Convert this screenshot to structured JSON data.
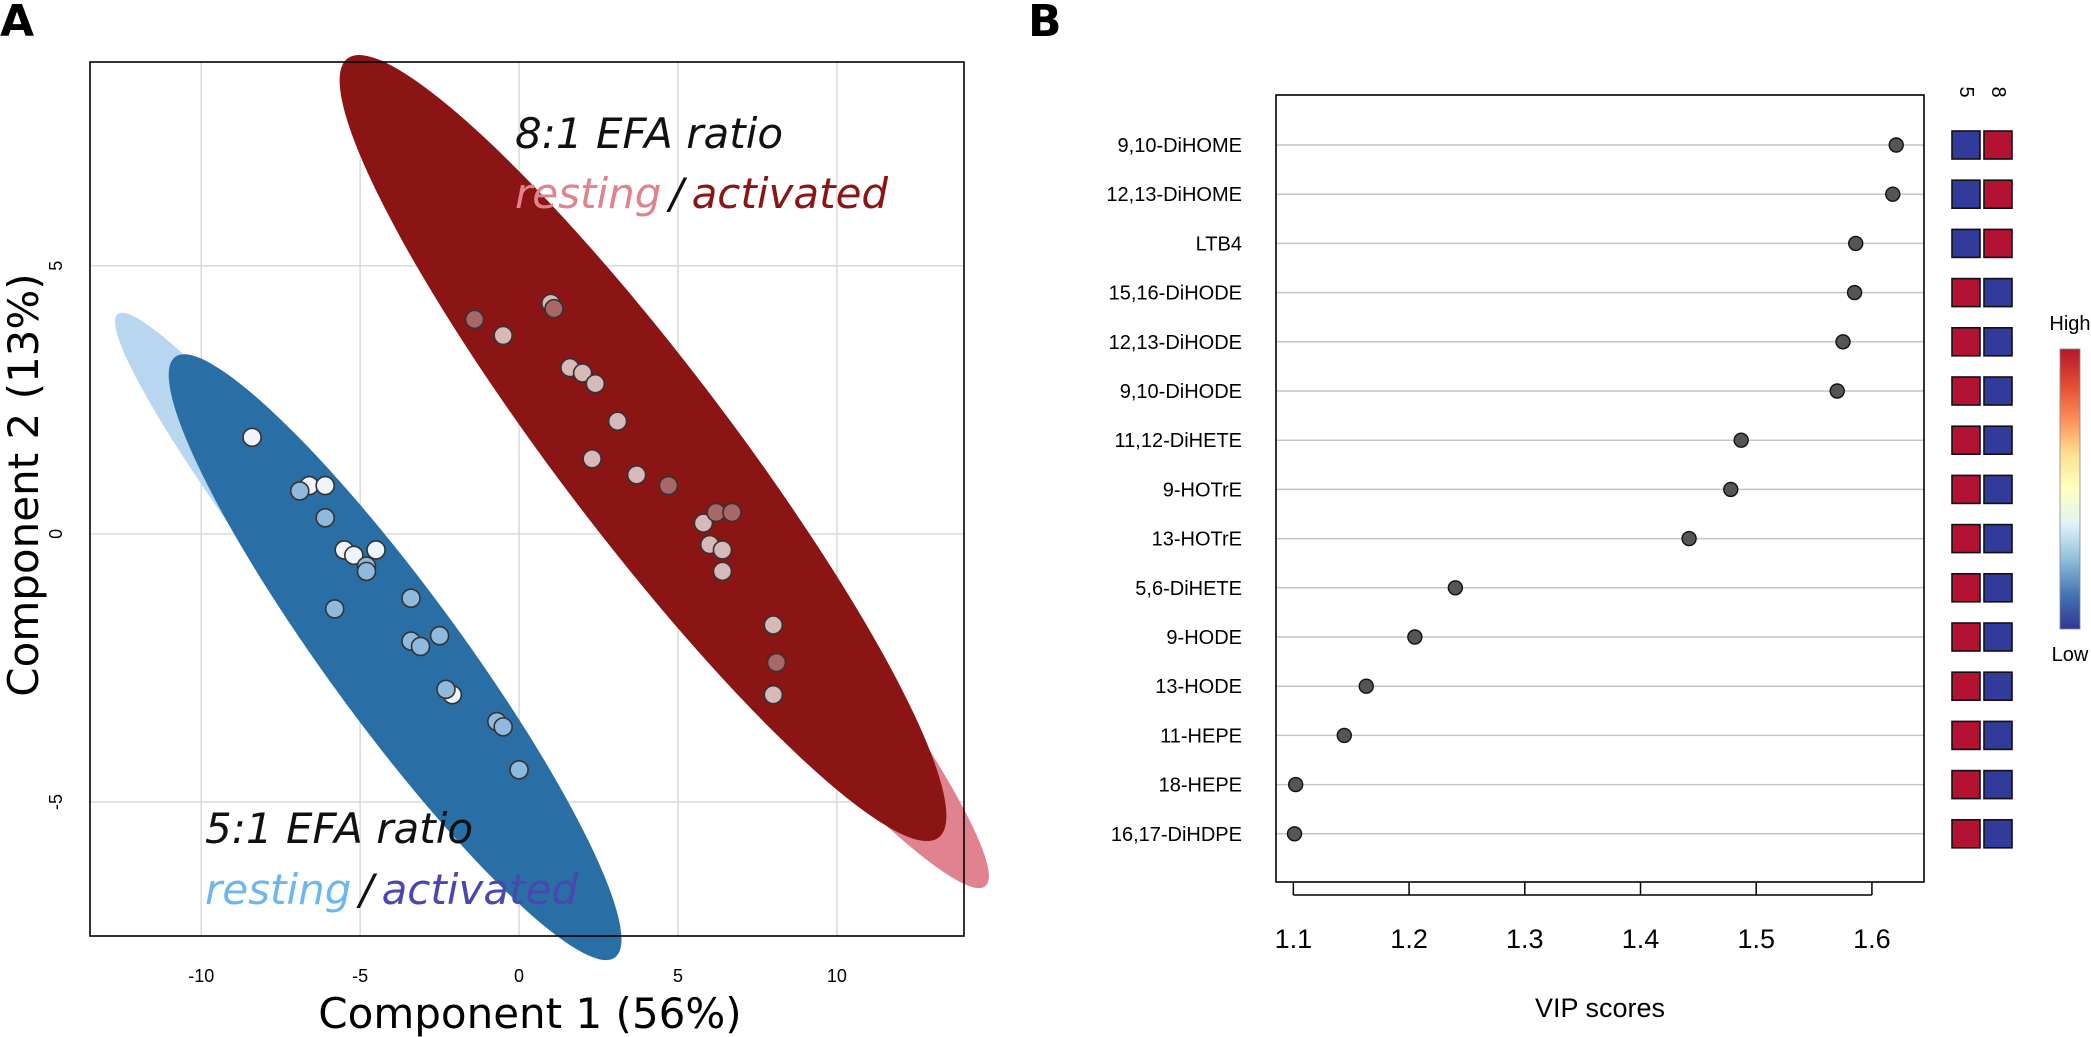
{
  "panel_labels": {
    "a": "A",
    "b": "B"
  },
  "chart_data": [
    {
      "type": "scatter",
      "panel": "A",
      "xlabel": "Component 1 (56%)",
      "ylabel": "Component 2 (13%)",
      "xlim": [
        -13.5,
        14
      ],
      "ylim": [
        -7.5,
        8.8
      ],
      "xticks": [
        -10,
        -5,
        0,
        5,
        10
      ],
      "yticks": [
        -5,
        0,
        5
      ],
      "grid": true,
      "colors": {
        "ellipse_5_resting": "#b8d6ef",
        "ellipse_5_activated": "#2a6ea6",
        "ellipse_8_resting": "#e0838e",
        "ellipse_8_activated": "#8b1515",
        "point_8_light": "#d8b9b9",
        "point_8_dark": "#a86868",
        "point_5_light": "#f0f4fa",
        "point_5_dark": "#8fbadd",
        "text_8_resting": "#e0838e",
        "text_8_activated": "#8b1515",
        "text_5_resting": "#6eb6ee",
        "text_5_activated": "#4a48b0"
      },
      "annotations": {
        "ratio8": {
          "title": "8:1 EFA ratio",
          "resting": "resting",
          "sep": "/",
          "activated": "activated"
        },
        "ratio5": {
          "title": "5:1 EFA ratio",
          "resting": "resting",
          "sep": "/",
          "activated": "activated"
        }
      },
      "ellipses": [
        {
          "group": "5:1 resting",
          "center": [
            -4.8,
            -1.8
          ],
          "major": 9.8,
          "minor": 1.0,
          "angle_deg": -37
        },
        {
          "group": "5:1 activated",
          "center": [
            -3.9,
            -2.3
          ],
          "major": 8.9,
          "minor": 1.45,
          "angle_deg": -39
        },
        {
          "group": "8:1 resting",
          "center": [
            4.8,
            0.6
          ],
          "major": 12.2,
          "minor": 1.3,
          "angle_deg": -36
        },
        {
          "group": "8:1 activated",
          "center": [
            3.9,
            1.6
          ],
          "major": 11.8,
          "minor": 1.85,
          "angle_deg": -38
        }
      ],
      "series": [
        {
          "name": "8:1 resting",
          "tone": "light",
          "x": [
            -0.5,
            1.0,
            1.6,
            2.0,
            2.4,
            3.1,
            3.7,
            2.3,
            5.8,
            6.0,
            6.4,
            6.4,
            8.0,
            8.0
          ],
          "y": [
            3.7,
            4.3,
            3.1,
            3.0,
            2.8,
            2.1,
            1.1,
            1.4,
            0.2,
            -0.2,
            -0.7,
            -0.3,
            -1.7,
            -3.0
          ]
        },
        {
          "name": "8:1 activated",
          "tone": "dark",
          "x": [
            -1.4,
            1.1,
            4.7,
            6.2,
            6.7,
            8.1
          ],
          "y": [
            4.0,
            4.2,
            0.9,
            0.4,
            0.4,
            -2.4
          ]
        },
        {
          "name": "5:1 resting",
          "tone": "light",
          "x": [
            -8.4,
            -6.6,
            -6.1,
            -5.5,
            -5.2,
            -4.5,
            -2.1
          ],
          "y": [
            1.8,
            0.9,
            0.9,
            -0.3,
            -0.4,
            -0.3,
            -3.0
          ]
        },
        {
          "name": "5:1 activated",
          "tone": "dark",
          "x": [
            -6.9,
            -6.1,
            -4.8,
            -4.8,
            -5.8,
            -3.4,
            -3.4,
            -3.1,
            -2.5,
            -2.3,
            -0.7,
            -0.5,
            0.0
          ],
          "y": [
            0.8,
            0.3,
            -0.6,
            -0.7,
            -1.4,
            -1.2,
            -2.0,
            -2.1,
            -1.9,
            -2.9,
            -3.5,
            -3.6,
            -4.4
          ]
        }
      ]
    },
    {
      "type": "scatter",
      "panel": "B",
      "xlabel": "VIP scores",
      "xlim": [
        1.085,
        1.645
      ],
      "xticks": [
        1.1,
        1.2,
        1.3,
        1.4,
        1.5,
        1.6
      ],
      "xtick_labels": [
        "1.1",
        "1.2",
        "1.3",
        "1.4",
        "1.5",
        "1.6"
      ],
      "categories": [
        "9,10-DiHOME",
        "12,13-DiHOME",
        "LTB4",
        "15,16-DiHODE",
        "12,13-DiHODE",
        "9,10-DiHODE",
        "11,12-DiHETE",
        "9-HOTrE",
        "13-HOTrE",
        "5,6-DiHETE",
        "9-HODE",
        "13-HODE",
        "11-HEPE",
        "18-HEPE",
        "16,17-DiHDPE"
      ],
      "values": [
        1.621,
        1.618,
        1.586,
        1.585,
        1.575,
        1.57,
        1.487,
        1.478,
        1.442,
        1.24,
        1.205,
        1.163,
        1.144,
        1.102,
        1.101
      ],
      "heatmap": {
        "columns": [
          "5",
          "8"
        ],
        "levels": [
          [
            "low",
            "high"
          ],
          [
            "low",
            "high"
          ],
          [
            "low",
            "high"
          ],
          [
            "high",
            "low"
          ],
          [
            "high",
            "low"
          ],
          [
            "high",
            "low"
          ],
          [
            "high",
            "low"
          ],
          [
            "high",
            "low"
          ],
          [
            "high",
            "low"
          ],
          [
            "high",
            "low"
          ],
          [
            "high",
            "low"
          ],
          [
            "high",
            "low"
          ],
          [
            "high",
            "low"
          ],
          [
            "high",
            "low"
          ],
          [
            "high",
            "low"
          ]
        ],
        "colors": {
          "high": "#b41233",
          "low": "#323a9a"
        },
        "legend": {
          "high_label": "High",
          "low_label": "Low",
          "gradient": [
            "#b2182b",
            "#e34a33",
            "#fc8d59",
            "#fee090",
            "#ffffbf",
            "#e0f3f8",
            "#91bfdb",
            "#4575b4",
            "#313695"
          ]
        }
      }
    }
  ]
}
